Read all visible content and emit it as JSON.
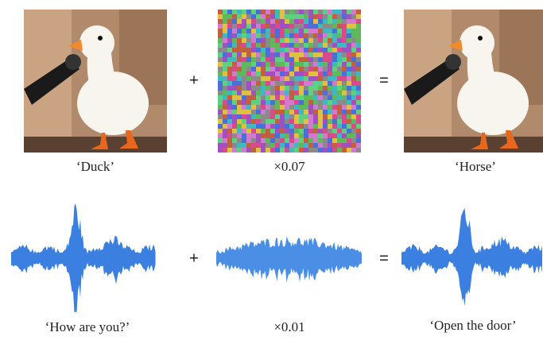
{
  "rows": [
    {
      "input_label": "‘Duck’",
      "plus": "+",
      "noise_label": "×0.07",
      "equals": "=",
      "output_label": "‘Horse’"
    },
    {
      "input_label": "‘How are you?’",
      "plus": "+",
      "noise_label": "×0.01",
      "equals": "=",
      "output_label": "‘Open the door’"
    }
  ]
}
